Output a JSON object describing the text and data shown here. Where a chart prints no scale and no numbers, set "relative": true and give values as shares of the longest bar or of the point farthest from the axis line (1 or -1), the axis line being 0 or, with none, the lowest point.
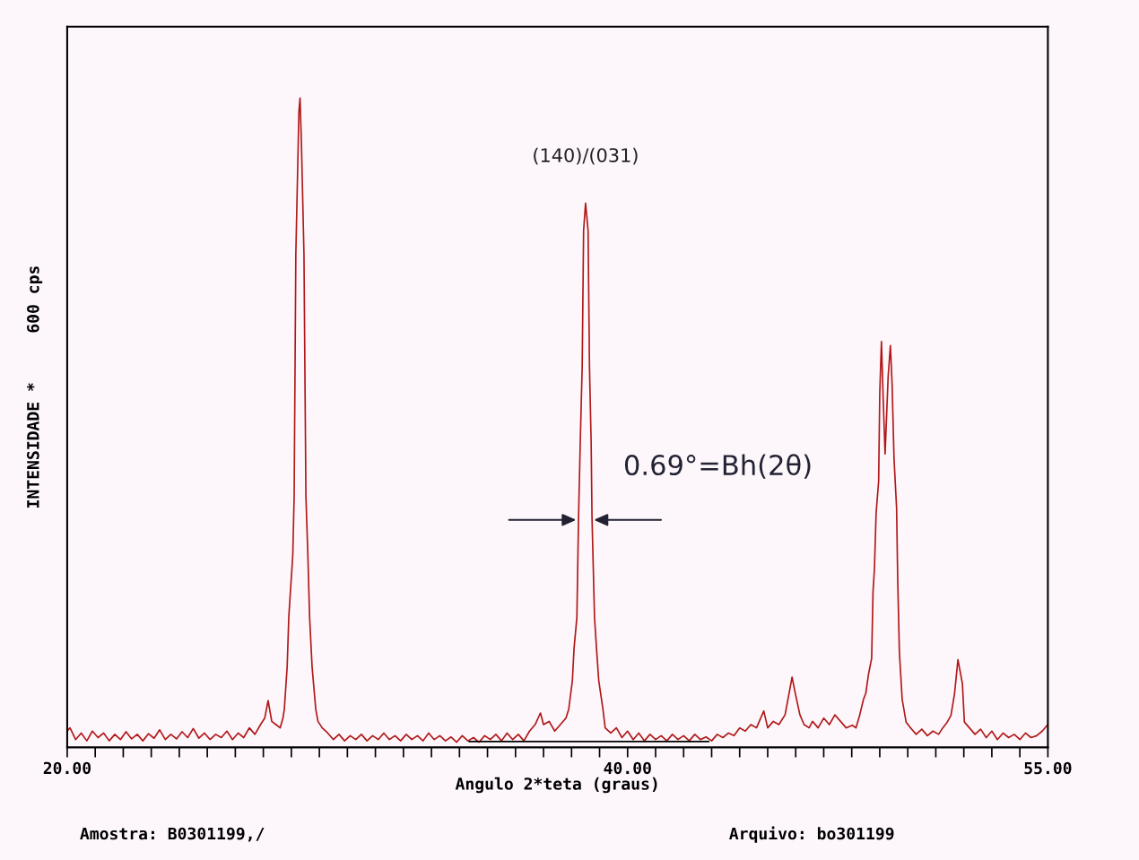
{
  "chart_data": {
    "type": "line",
    "relative": true,
    "xlabel": "Angulo 2*teta (graus)",
    "ylabel": "INTENSIDADE *     600 cps",
    "xlim": [
      20,
      55
    ],
    "xticks": [
      {
        "value": 20,
        "label": "20.00"
      },
      {
        "value": 21,
        "label": null
      },
      {
        "value": 22,
        "label": null
      },
      {
        "value": 23,
        "label": null
      },
      {
        "value": 24,
        "label": null
      },
      {
        "value": 25,
        "label": null
      },
      {
        "value": 26,
        "label": null
      },
      {
        "value": 27,
        "label": null
      },
      {
        "value": 28,
        "label": null
      },
      {
        "value": 29,
        "label": null
      },
      {
        "value": 30,
        "label": null
      },
      {
        "value": 31,
        "label": null
      },
      {
        "value": 32,
        "label": null
      },
      {
        "value": 33,
        "label": null
      },
      {
        "value": 34,
        "label": null
      },
      {
        "value": 35,
        "label": null
      },
      {
        "value": 36,
        "label": null
      },
      {
        "value": 37,
        "label": null
      },
      {
        "value": 38,
        "label": null
      },
      {
        "value": 39,
        "label": null
      },
      {
        "value": 40,
        "label": "40.00"
      },
      {
        "value": 41,
        "label": null
      },
      {
        "value": 42,
        "label": null
      },
      {
        "value": 43,
        "label": null
      },
      {
        "value": 44,
        "label": null
      },
      {
        "value": 45,
        "label": null
      },
      {
        "value": 46,
        "label": null
      },
      {
        "value": 47,
        "label": null
      },
      {
        "value": 48,
        "label": null
      },
      {
        "value": 49,
        "label": null
      },
      {
        "value": 50,
        "label": null
      },
      {
        "value": 51,
        "label": null
      },
      {
        "value": 52,
        "label": null
      },
      {
        "value": 53,
        "label": null
      },
      {
        "value": 54,
        "label": null
      },
      {
        "value": 55,
        "label": "55.00"
      }
    ],
    "grid": false,
    "series": [
      {
        "color": "#b01818",
        "x": [
          20.0,
          20.1,
          20.3,
          20.5,
          20.7,
          20.9,
          21.1,
          21.3,
          21.5,
          21.7,
          21.9,
          22.1,
          22.3,
          22.5,
          22.7,
          22.9,
          23.1,
          23.3,
          23.5,
          23.7,
          23.9,
          24.1,
          24.3,
          24.5,
          24.7,
          24.9,
          25.1,
          25.3,
          25.5,
          25.7,
          25.9,
          26.1,
          26.3,
          26.5,
          26.7,
          26.9,
          27.05,
          27.17,
          27.3,
          27.45,
          27.6,
          27.7,
          27.75,
          27.85,
          27.91,
          28.05,
          28.1,
          28.16,
          28.27,
          28.31,
          28.36,
          28.45,
          28.52,
          28.59,
          28.65,
          28.74,
          28.87,
          28.95,
          29.1,
          29.3,
          29.5,
          29.7,
          29.9,
          30.1,
          30.3,
          30.5,
          30.7,
          30.9,
          31.1,
          31.3,
          31.5,
          31.7,
          31.9,
          32.1,
          32.3,
          32.5,
          32.7,
          32.9,
          33.1,
          33.3,
          33.5,
          33.7,
          33.9,
          34.1,
          34.3,
          34.5,
          34.7,
          34.9,
          35.1,
          35.3,
          35.5,
          35.7,
          35.9,
          36.1,
          36.3,
          36.5,
          36.7,
          36.89,
          37.0,
          37.2,
          37.4,
          37.6,
          37.8,
          37.9,
          38.03,
          38.09,
          38.19,
          38.25,
          38.31,
          38.38,
          38.43,
          38.5,
          38.59,
          38.64,
          38.7,
          38.73,
          38.82,
          38.89,
          38.97,
          39.12,
          39.2,
          39.4,
          39.6,
          39.8,
          40.0,
          40.2,
          40.4,
          40.6,
          40.8,
          41.0,
          41.2,
          41.4,
          41.6,
          41.8,
          42.0,
          42.2,
          42.4,
          42.6,
          42.8,
          43.0,
          43.2,
          43.4,
          43.6,
          43.8,
          44.0,
          44.2,
          44.4,
          44.6,
          44.86,
          45.0,
          45.2,
          45.4,
          45.62,
          45.75,
          45.87,
          46.0,
          46.15,
          46.3,
          46.48,
          46.6,
          46.8,
          47.0,
          47.2,
          47.4,
          47.6,
          47.8,
          48.02,
          48.15,
          48.28,
          48.42,
          48.5,
          48.6,
          48.71,
          48.76,
          48.81,
          48.87,
          48.96,
          49.0,
          49.06,
          49.12,
          49.19,
          49.3,
          49.38,
          49.44,
          49.51,
          49.6,
          49.64,
          49.7,
          49.8,
          49.94,
          50.1,
          50.3,
          50.5,
          50.7,
          50.9,
          51.1,
          51.25,
          51.38,
          51.54,
          51.67,
          51.79,
          51.95,
          52.02,
          52.2,
          52.4,
          52.6,
          52.8,
          53.0,
          53.2,
          53.4,
          53.6,
          53.8,
          54.0,
          54.2,
          54.4,
          54.6,
          54.8,
          55.0
        ],
        "values": [
          0.025,
          0.03,
          0.012,
          0.022,
          0.01,
          0.025,
          0.015,
          0.022,
          0.01,
          0.02,
          0.012,
          0.024,
          0.013,
          0.02,
          0.01,
          0.021,
          0.014,
          0.027,
          0.012,
          0.02,
          0.013,
          0.024,
          0.015,
          0.029,
          0.014,
          0.022,
          0.012,
          0.02,
          0.015,
          0.025,
          0.012,
          0.022,
          0.015,
          0.03,
          0.02,
          0.035,
          0.045,
          0.072,
          0.04,
          0.035,
          0.03,
          0.045,
          0.059,
          0.124,
          0.202,
          0.295,
          0.386,
          0.76,
          0.98,
          1.0,
          0.93,
          0.76,
          0.386,
          0.295,
          0.202,
          0.124,
          0.059,
          0.04,
          0.03,
          0.022,
          0.012,
          0.02,
          0.01,
          0.018,
          0.012,
          0.02,
          0.01,
          0.018,
          0.012,
          0.022,
          0.012,
          0.018,
          0.01,
          0.02,
          0.012,
          0.018,
          0.01,
          0.022,
          0.012,
          0.018,
          0.01,
          0.016,
          0.008,
          0.018,
          0.01,
          0.015,
          0.008,
          0.018,
          0.012,
          0.02,
          0.01,
          0.022,
          0.012,
          0.02,
          0.01,
          0.025,
          0.035,
          0.053,
          0.035,
          0.04,
          0.025,
          0.035,
          0.045,
          0.059,
          0.103,
          0.153,
          0.2,
          0.354,
          0.468,
          0.587,
          0.796,
          0.838,
          0.796,
          0.587,
          0.468,
          0.354,
          0.2,
          0.153,
          0.103,
          0.059,
          0.03,
          0.022,
          0.03,
          0.015,
          0.025,
          0.012,
          0.022,
          0.01,
          0.02,
          0.012,
          0.018,
          0.01,
          0.02,
          0.012,
          0.018,
          0.01,
          0.02,
          0.012,
          0.016,
          0.01,
          0.02,
          0.015,
          0.022,
          0.018,
          0.03,
          0.025,
          0.035,
          0.03,
          0.056,
          0.03,
          0.04,
          0.035,
          0.05,
          0.08,
          0.108,
          0.08,
          0.05,
          0.035,
          0.03,
          0.04,
          0.03,
          0.045,
          0.035,
          0.05,
          0.04,
          0.03,
          0.034,
          0.03,
          0.049,
          0.074,
          0.083,
          0.113,
          0.137,
          0.24,
          0.275,
          0.361,
          0.41,
          0.546,
          0.625,
          0.54,
          0.452,
          0.572,
          0.619,
          0.56,
          0.444,
          0.369,
          0.26,
          0.147,
          0.074,
          0.039,
          0.03,
          0.02,
          0.028,
          0.018,
          0.025,
          0.02,
          0.03,
          0.037,
          0.049,
          0.083,
          0.135,
          0.098,
          0.039,
          0.03,
          0.02,
          0.028,
          0.015,
          0.025,
          0.012,
          0.022,
          0.015,
          0.02,
          0.012,
          0.022,
          0.015,
          0.018,
          0.025,
          0.035
        ]
      },
      {
        "color": "#000000",
        "x": [
          34.35,
          42.89
        ],
        "values": [
          0.009,
          0.009
        ]
      }
    ],
    "annotations": [
      {
        "text": "(140)/(031)",
        "x": 38.5,
        "y": 0.838
      },
      "0.69°=Bh(2θ)",
      "Amostra: B0301199,/",
      "Arquivo: bo301199"
    ]
  }
}
